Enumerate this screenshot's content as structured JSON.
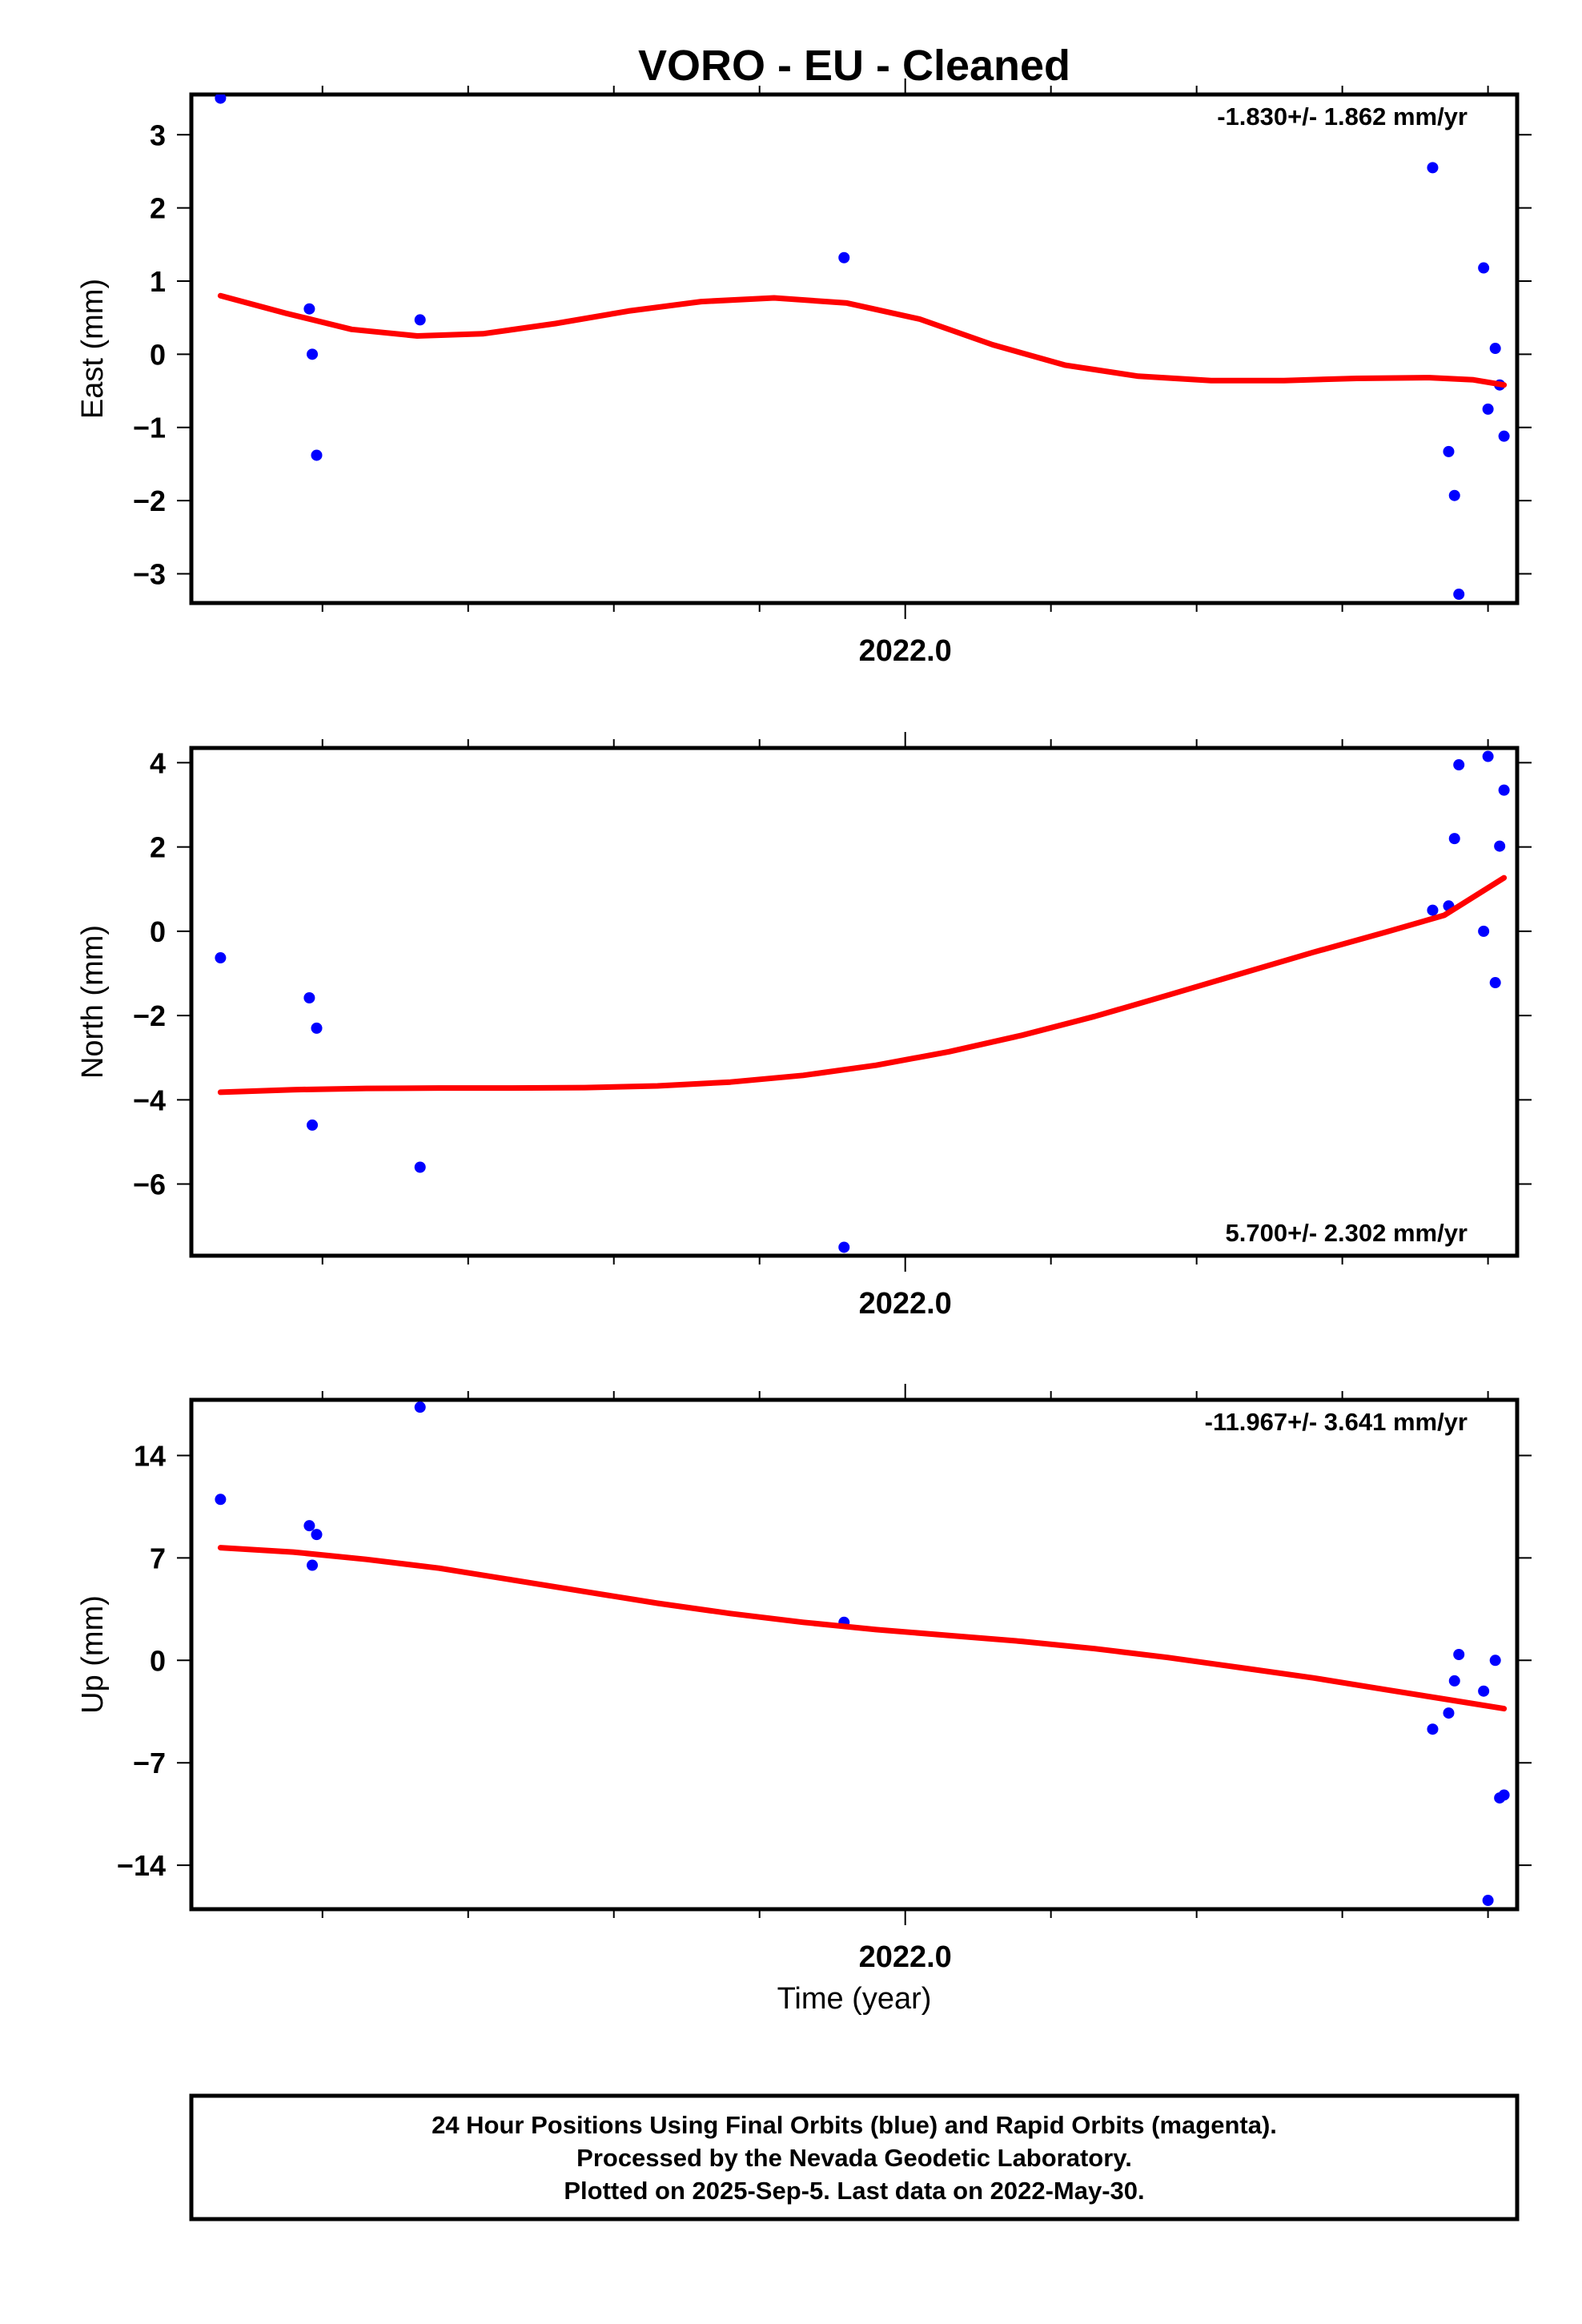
{
  "chart_data": {
    "type": "scatter",
    "title": "VORO  - EU - Cleaned",
    "xlabel": "Time (year)",
    "xlim": [
      2021.51,
      2022.42
    ],
    "x_tick_label": "2022.0",
    "colors": {
      "final": "#0000ff",
      "rapid": "#ff00ff",
      "fit": "#ff0000"
    },
    "panels": [
      {
        "name": "east",
        "ylabel": "East (mm)",
        "ylim": [
          -3.4,
          3.55
        ],
        "yticks": [
          3,
          2,
          1,
          0,
          -1,
          -2,
          -3
        ],
        "ytick_labels": [
          "3",
          "2",
          "1",
          "0",
          "−1",
          "−2",
          "−3"
        ],
        "rate_label": "-1.830+/- 1.862 mm/yr",
        "rate_position": "top-right",
        "points": [
          [
            2021.53,
            3.5
          ],
          [
            2021.591,
            0.62
          ],
          [
            2021.593,
            0.0
          ],
          [
            2021.596,
            -1.38
          ],
          [
            2021.667,
            0.47
          ],
          [
            2021.958,
            1.32
          ],
          [
            2022.362,
            2.55
          ],
          [
            2022.373,
            -1.33
          ],
          [
            2022.377,
            -1.93
          ],
          [
            2022.38,
            -3.28
          ],
          [
            2022.397,
            1.18
          ],
          [
            2022.4,
            -0.75
          ],
          [
            2022.405,
            0.08
          ],
          [
            2022.408,
            -0.42
          ],
          [
            2022.411,
            -1.12
          ]
        ],
        "fit": [
          [
            2021.53,
            0.8
          ],
          [
            2021.575,
            0.56
          ],
          [
            2021.62,
            0.34
          ],
          [
            2021.665,
            0.25
          ],
          [
            2021.71,
            0.28
          ],
          [
            2021.76,
            0.42
          ],
          [
            2021.81,
            0.59
          ],
          [
            2021.86,
            0.72
          ],
          [
            2021.91,
            0.77
          ],
          [
            2021.96,
            0.7
          ],
          [
            2022.01,
            0.48
          ],
          [
            2022.06,
            0.13
          ],
          [
            2022.11,
            -0.15
          ],
          [
            2022.16,
            -0.3
          ],
          [
            2022.21,
            -0.36
          ],
          [
            2022.26,
            -0.36
          ],
          [
            2022.31,
            -0.33
          ],
          [
            2022.36,
            -0.32
          ],
          [
            2022.39,
            -0.35
          ],
          [
            2022.411,
            -0.42
          ]
        ]
      },
      {
        "name": "north",
        "ylabel": "North (mm)",
        "ylim": [
          -7.7,
          4.35
        ],
        "yticks": [
          4,
          2,
          0,
          -2,
          -4,
          -6
        ],
        "ytick_labels": [
          "4",
          "2",
          "0",
          "−2",
          "−4",
          "−6"
        ],
        "rate_label": "5.700+/- 2.302 mm/yr",
        "rate_position": "bottom-right",
        "points": [
          [
            2021.53,
            -0.63
          ],
          [
            2021.591,
            -1.58
          ],
          [
            2021.593,
            -4.6
          ],
          [
            2021.596,
            -2.3
          ],
          [
            2021.667,
            -5.6
          ],
          [
            2021.958,
            -7.5
          ],
          [
            2022.362,
            0.5
          ],
          [
            2022.373,
            0.6
          ],
          [
            2022.377,
            2.2
          ],
          [
            2022.38,
            3.95
          ],
          [
            2022.397,
            0.0
          ],
          [
            2022.4,
            4.15
          ],
          [
            2022.405,
            -1.22
          ],
          [
            2022.408,
            2.02
          ],
          [
            2022.411,
            3.35
          ]
        ],
        "fit": [
          [
            2021.53,
            -3.82
          ],
          [
            2021.58,
            -3.76
          ],
          [
            2021.63,
            -3.73
          ],
          [
            2021.68,
            -3.72
          ],
          [
            2021.73,
            -3.72
          ],
          [
            2021.78,
            -3.71
          ],
          [
            2021.83,
            -3.67
          ],
          [
            2021.88,
            -3.58
          ],
          [
            2021.93,
            -3.42
          ],
          [
            2021.98,
            -3.18
          ],
          [
            2022.03,
            -2.86
          ],
          [
            2022.08,
            -2.47
          ],
          [
            2022.13,
            -2.02
          ],
          [
            2022.18,
            -1.52
          ],
          [
            2022.23,
            -1.01
          ],
          [
            2022.28,
            -0.5
          ],
          [
            2022.33,
            -0.02
          ],
          [
            2022.37,
            0.38
          ],
          [
            2022.411,
            1.27
          ]
        ]
      },
      {
        "name": "up",
        "ylabel": "Up (mm)",
        "ylim": [
          -17.0,
          17.8
        ],
        "yticks": [
          14,
          7,
          0,
          -7,
          -14
        ],
        "ytick_labels": [
          "14",
          "7",
          "0",
          "−7",
          "−14"
        ],
        "rate_label": "-11.967+/- 3.641 mm/yr",
        "rate_position": "top-right",
        "points": [
          [
            2021.53,
            11.0
          ],
          [
            2021.591,
            9.2
          ],
          [
            2021.593,
            6.5
          ],
          [
            2021.596,
            8.6
          ],
          [
            2021.667,
            17.3
          ],
          [
            2021.958,
            2.6
          ],
          [
            2022.362,
            -4.7
          ],
          [
            2022.373,
            -3.6
          ],
          [
            2022.377,
            -1.4
          ],
          [
            2022.38,
            0.4
          ],
          [
            2022.397,
            -2.1
          ],
          [
            2022.4,
            -16.4
          ],
          [
            2022.405,
            0.0
          ],
          [
            2022.408,
            -9.4
          ],
          [
            2022.411,
            -9.2
          ]
        ],
        "fit": [
          [
            2021.53,
            7.7
          ],
          [
            2021.58,
            7.4
          ],
          [
            2021.63,
            6.9
          ],
          [
            2021.68,
            6.3
          ],
          [
            2021.73,
            5.5
          ],
          [
            2021.78,
            4.7
          ],
          [
            2021.83,
            3.9
          ],
          [
            2021.88,
            3.2
          ],
          [
            2021.93,
            2.6
          ],
          [
            2021.98,
            2.1
          ],
          [
            2022.03,
            1.7
          ],
          [
            2022.08,
            1.3
          ],
          [
            2022.13,
            0.8
          ],
          [
            2022.18,
            0.2
          ],
          [
            2022.23,
            -0.5
          ],
          [
            2022.28,
            -1.2
          ],
          [
            2022.33,
            -2.0
          ],
          [
            2022.38,
            -2.8
          ],
          [
            2022.411,
            -3.3
          ]
        ]
      }
    ]
  },
  "footer": {
    "line1": "24 Hour Positions Using Final Orbits (blue) and Rapid Orbits (magenta).",
    "line2": "Processed by the Nevada Geodetic Laboratory.",
    "line3": "Plotted on 2025-Sep-5. Last data on 2022-May-30."
  }
}
